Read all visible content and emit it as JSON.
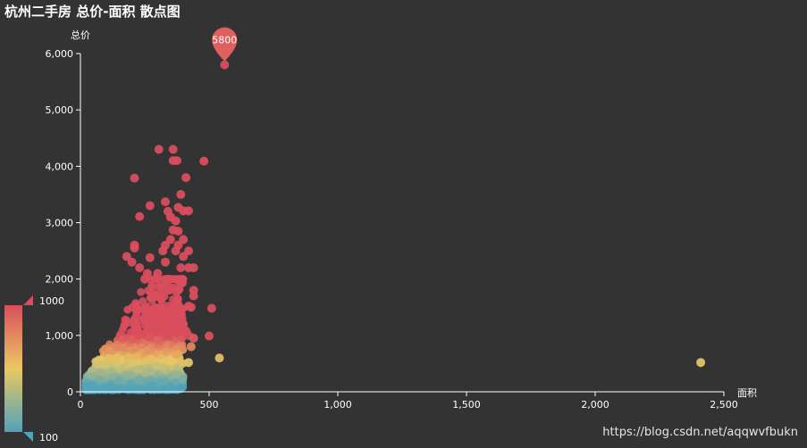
{
  "chart_data": {
    "type": "scatter",
    "title": "杭州二手房 总价-面积 散点图",
    "xlabel": "面积",
    "ylabel": "总价",
    "xlim": [
      0,
      2500
    ],
    "ylim": [
      0,
      6000
    ],
    "x_ticks": [
      "0",
      "500",
      "1,000",
      "1,500",
      "2,000",
      "2,500"
    ],
    "y_ticks": [
      "0",
      "1,000",
      "2,000",
      "3,000",
      "4,000",
      "5,000",
      "6,000"
    ],
    "x_tick_values": [
      0,
      500,
      1000,
      1500,
      2000,
      2500
    ],
    "y_tick_values": [
      0,
      1000,
      2000,
      3000,
      4000,
      5000,
      6000
    ],
    "grid": false,
    "visual_map": {
      "min": 100,
      "max": 1000,
      "min_label": "100",
      "max_label": "1000",
      "colors": [
        "#50a3ba",
        "#eac763",
        "#d94e5d"
      ],
      "placement": "bottom-left"
    },
    "mark_point": {
      "x": 560,
      "y": 5800,
      "label": "5800",
      "color": "#e06060"
    },
    "series": [
      {
        "points": [
          [
            560,
            5800
          ],
          [
            305,
            4300
          ],
          [
            360,
            4300
          ],
          [
            360,
            4100
          ],
          [
            375,
            4100
          ],
          [
            480,
            4090
          ],
          [
            210,
            3790
          ],
          [
            410,
            3800
          ],
          [
            330,
            3370
          ],
          [
            270,
            3300
          ],
          [
            390,
            3500
          ],
          [
            380,
            3270
          ],
          [
            400,
            3210
          ],
          [
            420,
            3210
          ],
          [
            340,
            3200
          ],
          [
            230,
            3110
          ],
          [
            350,
            3100
          ],
          [
            370,
            3030
          ],
          [
            380,
            2850
          ],
          [
            360,
            2870
          ],
          [
            350,
            2700
          ],
          [
            400,
            2700
          ],
          [
            380,
            2600
          ],
          [
            330,
            2600
          ],
          [
            210,
            2600
          ],
          [
            210,
            2550
          ],
          [
            320,
            2500
          ],
          [
            370,
            2500
          ],
          [
            420,
            2500
          ],
          [
            180,
            2400
          ],
          [
            270,
            2380
          ],
          [
            400,
            2400
          ],
          [
            200,
            2300
          ],
          [
            330,
            2300
          ],
          [
            230,
            2200
          ],
          [
            390,
            2200
          ],
          [
            420,
            2200
          ],
          [
            440,
            2200
          ],
          [
            260,
            2100
          ],
          [
            300,
            2100
          ],
          [
            250,
            2000
          ],
          [
            340,
            2000
          ],
          [
            440,
            1800
          ],
          [
            440,
            1700
          ],
          [
            420,
            1520
          ],
          [
            430,
            1500
          ],
          [
            510,
            1480
          ],
          [
            380,
            1270
          ],
          [
            400,
            1200
          ],
          [
            410,
            1080
          ],
          [
            420,
            1000
          ],
          [
            500,
            990
          ],
          [
            440,
            950
          ],
          [
            430,
            800
          ],
          [
            540,
            600
          ],
          [
            420,
            520
          ],
          [
            2410,
            520
          ]
        ]
      }
    ]
  },
  "watermark": "https://blog.csdn.net/aqqwvfbukn",
  "colors": {
    "background": "#333333",
    "axis": "#ffffff"
  }
}
